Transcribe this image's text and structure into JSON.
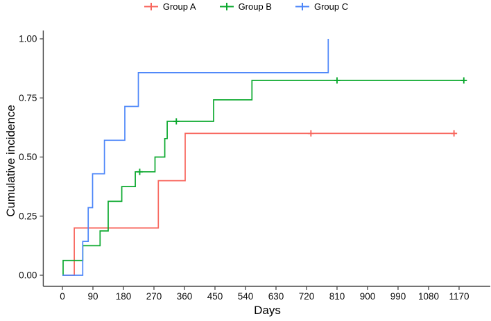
{
  "figure_type": "cumulative-incidence-step-plot",
  "legend": {
    "items": [
      {
        "label": "Group A",
        "color": "#f8655c",
        "marker": "censor-plus-line"
      },
      {
        "label": "Group B",
        "color": "#0ca92f",
        "marker": "censor-plus-line"
      },
      {
        "label": "Group C",
        "color": "#4c86f9",
        "marker": "censor-plus-line"
      }
    ]
  },
  "chart_data": {
    "type": "line",
    "subtype": "step-function-cumulative-incidence",
    "title": "",
    "xlabel": "Days",
    "ylabel": "Cumulative incidence",
    "xlim": [
      0,
      1170
    ],
    "ylim": [
      0.0,
      1.0
    ],
    "grid": false,
    "legend_position": "top-center",
    "x_ticks": [
      0,
      90,
      180,
      270,
      360,
      450,
      540,
      630,
      720,
      810,
      900,
      990,
      1080,
      1170
    ],
    "y_ticks": [
      {
        "value": 0.0,
        "label": "0.00"
      },
      {
        "value": 0.25,
        "label": "0.25"
      },
      {
        "value": 0.5,
        "label": "0.50"
      },
      {
        "value": 0.75,
        "label": "0.75"
      },
      {
        "value": 1.0,
        "label": "1.00"
      }
    ],
    "series": [
      {
        "name": "Group A",
        "color": "#f8655c",
        "points": [
          [
            0,
            0
          ],
          [
            35,
            0.2
          ],
          [
            283,
            0.4
          ],
          [
            362,
            0.6
          ]
        ],
        "end_day": 1158,
        "censor_marks": [
          [
            733,
            0.6
          ],
          [
            1155,
            0.6
          ]
        ]
      },
      {
        "name": "Group B",
        "color": "#0ca92f",
        "points": [
          [
            0,
            0
          ],
          [
            2,
            0.0625
          ],
          [
            60,
            0.125
          ],
          [
            111,
            0.1875
          ],
          [
            135,
            0.3125
          ],
          [
            175,
            0.375
          ],
          [
            215,
            0.4375
          ],
          [
            273,
            0.5
          ],
          [
            302,
            0.578
          ],
          [
            309,
            0.651
          ],
          [
            446,
            0.742
          ],
          [
            559,
            0.824
          ]
        ],
        "end_day": 1186,
        "censor_marks": [
          [
            228,
            0.4375
          ],
          [
            336,
            0.651
          ],
          [
            810,
            0.824
          ],
          [
            1184,
            0.824
          ]
        ]
      },
      {
        "name": "Group C",
        "color": "#4c86f9",
        "points": [
          [
            0,
            0
          ],
          [
            60,
            0.143
          ],
          [
            76,
            0.286
          ],
          [
            89,
            0.429
          ],
          [
            124,
            0.571
          ],
          [
            184,
            0.714
          ],
          [
            224,
            0.857
          ],
          [
            784,
            1.0
          ]
        ],
        "end_day": 784,
        "censor_marks": []
      }
    ]
  },
  "axes_style": {
    "spine_color": "#474747",
    "tick_color": "#474747",
    "text_color": "#0d0d0d"
  }
}
